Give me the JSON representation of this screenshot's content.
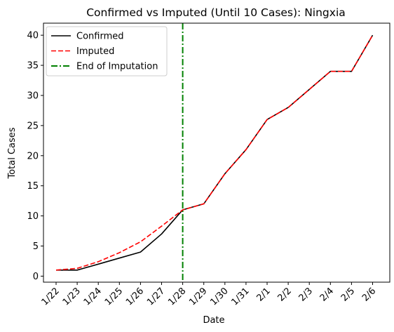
{
  "chart_data": {
    "type": "line",
    "title": "Confirmed vs Imputed (Until 10 Cases): Ningxia",
    "xlabel": "Date",
    "ylabel": "Total Cases",
    "categories": [
      "1/22",
      "1/23",
      "1/24",
      "1/25",
      "1/26",
      "1/27",
      "1/28",
      "1/29",
      "1/30",
      "1/31",
      "2/1",
      "2/2",
      "2/3",
      "2/4",
      "2/5",
      "2/6"
    ],
    "series": [
      {
        "name": "Confirmed",
        "color": "#000000",
        "style": "solid",
        "values": [
          1,
          1,
          2,
          3,
          4,
          7,
          11,
          12,
          17,
          21,
          26,
          28,
          31,
          34,
          34,
          40
        ]
      },
      {
        "name": "Imputed",
        "color": "#ff0000",
        "style": "dashed",
        "values": [
          1,
          1.3,
          2.4,
          3.9,
          5.7,
          8.3,
          11,
          12,
          17,
          21,
          26,
          28,
          31,
          34,
          34,
          40
        ]
      }
    ],
    "vertical_line": {
      "name": "End of Imputation",
      "color": "#008000",
      "style": "dashdot",
      "x": "1/28"
    },
    "yticks": [
      0,
      5,
      10,
      15,
      20,
      25,
      30,
      35,
      40
    ],
    "ylim": [
      -1,
      42
    ],
    "grid": false,
    "legend_position": "top-left"
  }
}
